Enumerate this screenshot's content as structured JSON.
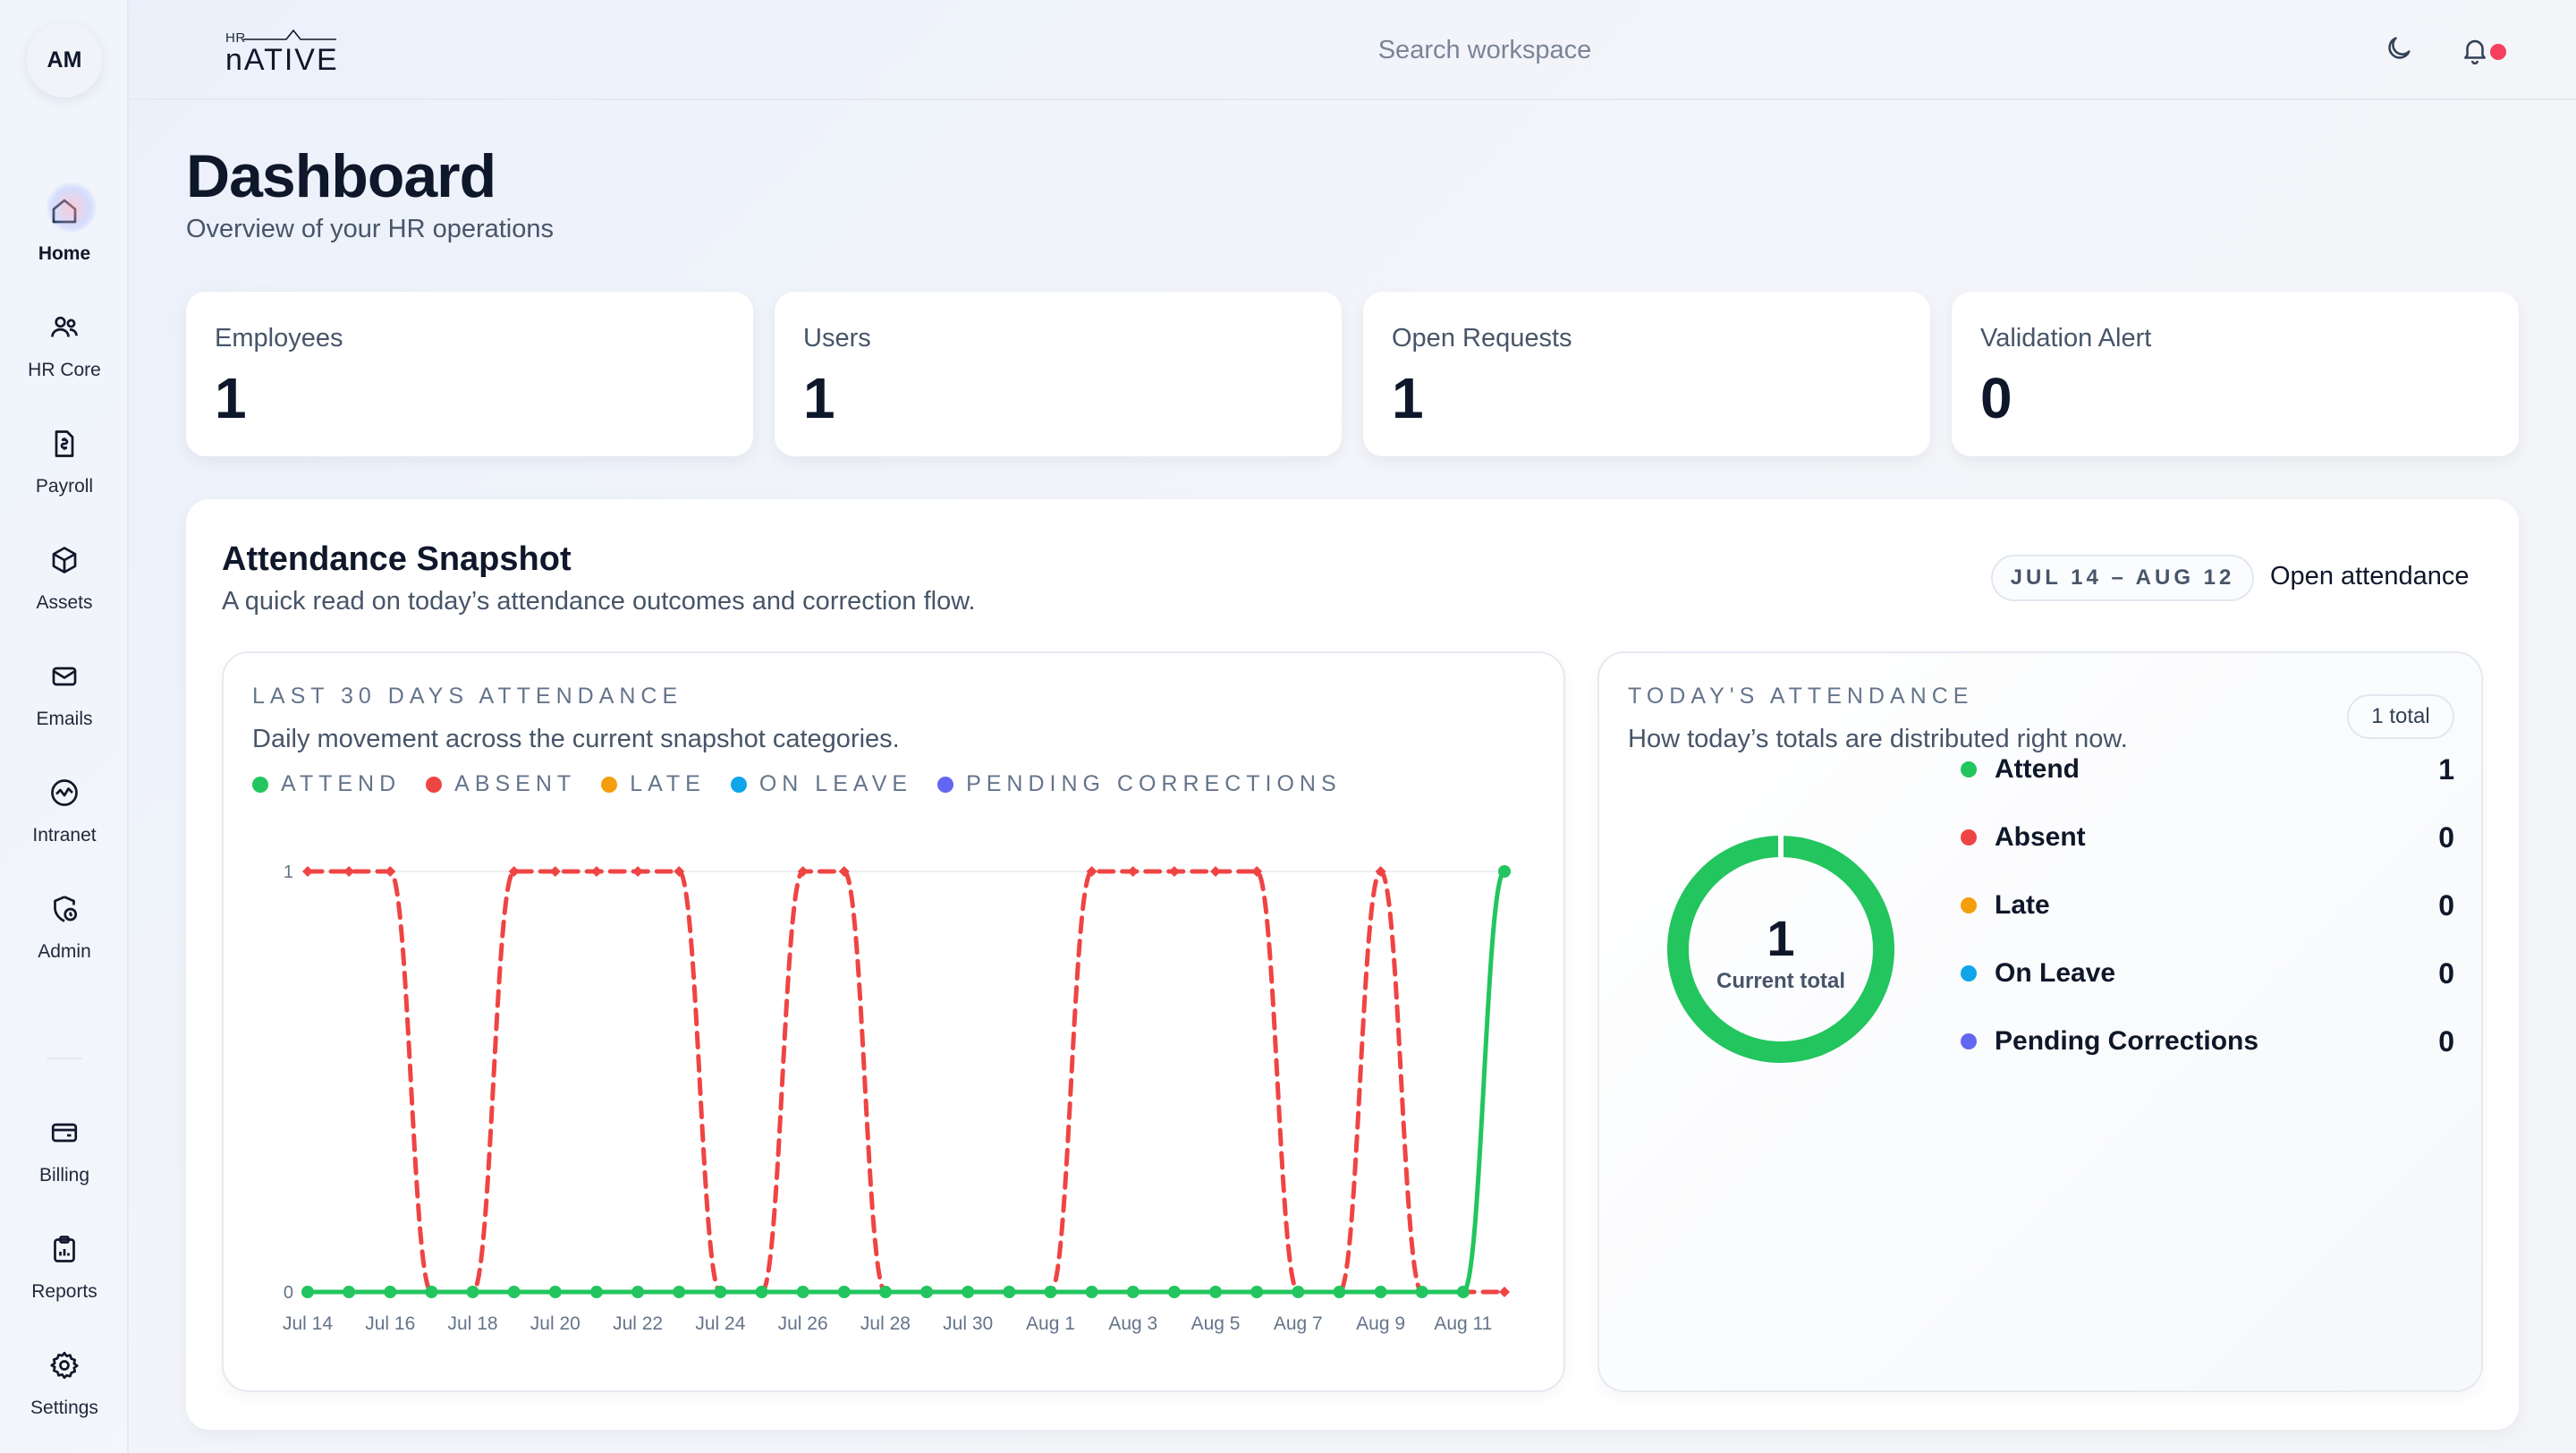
{
  "user": {
    "initials": "AM"
  },
  "brand": {
    "small": "HR",
    "name": "nATIVE"
  },
  "search": {
    "placeholder": "Search workspace"
  },
  "nav": {
    "items": [
      {
        "label": "Home",
        "icon": "home-icon"
      },
      {
        "label": "HR Core",
        "icon": "users-icon"
      },
      {
        "label": "Payroll",
        "icon": "payroll-icon"
      },
      {
        "label": "Assets",
        "icon": "box-icon"
      },
      {
        "label": "Emails",
        "icon": "mail-icon"
      },
      {
        "label": "Intranet",
        "icon": "activity-icon"
      },
      {
        "label": "Admin",
        "icon": "admin-icon"
      }
    ],
    "bottom": [
      {
        "label": "Billing",
        "icon": "wallet-icon"
      },
      {
        "label": "Reports",
        "icon": "clipboard-chart-icon"
      },
      {
        "label": "Settings",
        "icon": "gear-icon"
      }
    ]
  },
  "page": {
    "title": "Dashboard",
    "subtitle": "Overview of your HR operations"
  },
  "kpis": [
    {
      "label": "Employees",
      "value": "1"
    },
    {
      "label": "Users",
      "value": "1"
    },
    {
      "label": "Open Requests",
      "value": "1"
    },
    {
      "label": "Validation Alert",
      "value": "0"
    }
  ],
  "attendance": {
    "title": "Attendance Snapshot",
    "subtitle": "A quick read on today’s attendance outcomes and correction flow.",
    "range": "JUL 14 – AUG 12",
    "open_link": "Open attendance",
    "trend": {
      "eyebrow": "LAST 30 DAYS ATTENDANCE",
      "subtitle": "Daily movement across the current snapshot categories.",
      "legend": [
        {
          "label": "ATTEND",
          "color": "#22c55e"
        },
        {
          "label": "ABSENT",
          "color": "#ef4444"
        },
        {
          "label": "LATE",
          "color": "#f59e0b"
        },
        {
          "label": "ON LEAVE",
          "color": "#0ea5e9"
        },
        {
          "label": "PENDING CORRECTIONS",
          "color": "#6366f1"
        }
      ]
    },
    "today": {
      "eyebrow": "TODAY'S ATTENDANCE",
      "subtitle": "How today’s totals are distributed right now.",
      "total_pill": "1 total",
      "center_value": "1",
      "center_caption": "Current total",
      "rows": [
        {
          "label": "Attend",
          "value": "1",
          "color": "#22c55e"
        },
        {
          "label": "Absent",
          "value": "0",
          "color": "#ef4444"
        },
        {
          "label": "Late",
          "value": "0",
          "color": "#f59e0b"
        },
        {
          "label": "On Leave",
          "value": "0",
          "color": "#0ea5e9"
        },
        {
          "label": "Pending Corrections",
          "value": "0",
          "color": "#6366f1"
        }
      ]
    }
  },
  "chart_data": {
    "type": "line",
    "x": [
      "Jul 14",
      "Jul 15",
      "Jul 16",
      "Jul 17",
      "Jul 18",
      "Jul 19",
      "Jul 20",
      "Jul 21",
      "Jul 22",
      "Jul 23",
      "Jul 24",
      "Jul 25",
      "Jul 26",
      "Jul 27",
      "Jul 28",
      "Jul 29",
      "Jul 30",
      "Jul 31",
      "Aug 1",
      "Aug 2",
      "Aug 3",
      "Aug 4",
      "Aug 5",
      "Aug 6",
      "Aug 7",
      "Aug 8",
      "Aug 9",
      "Aug 10",
      "Aug 11",
      "Aug 12"
    ],
    "tick_labels": [
      "Jul 14",
      "Jul 16",
      "Jul 18",
      "Jul 20",
      "Jul 22",
      "Jul 24",
      "Jul 26",
      "Jul 28",
      "Jul 30",
      "Aug 1",
      "Aug 3",
      "Aug 5",
      "Aug 7",
      "Aug 9",
      "Aug 11"
    ],
    "ylim": [
      0,
      1
    ],
    "yticks": [
      "0",
      "1"
    ],
    "series": [
      {
        "name": "ATTEND",
        "color": "#22c55e",
        "dashed": false,
        "values": [
          0,
          0,
          0,
          0,
          0,
          0,
          0,
          0,
          0,
          0,
          0,
          0,
          0,
          0,
          0,
          0,
          0,
          0,
          0,
          0,
          0,
          0,
          0,
          0,
          0,
          0,
          0,
          0,
          0,
          1
        ]
      },
      {
        "name": "ABSENT",
        "color": "#ef4444",
        "dashed": true,
        "values": [
          1,
          1,
          1,
          0,
          0,
          1,
          1,
          1,
          1,
          1,
          0,
          0,
          1,
          1,
          0,
          0,
          0,
          0,
          0,
          1,
          1,
          1,
          1,
          1,
          0,
          0,
          1,
          0,
          0,
          0
        ]
      }
    ]
  }
}
